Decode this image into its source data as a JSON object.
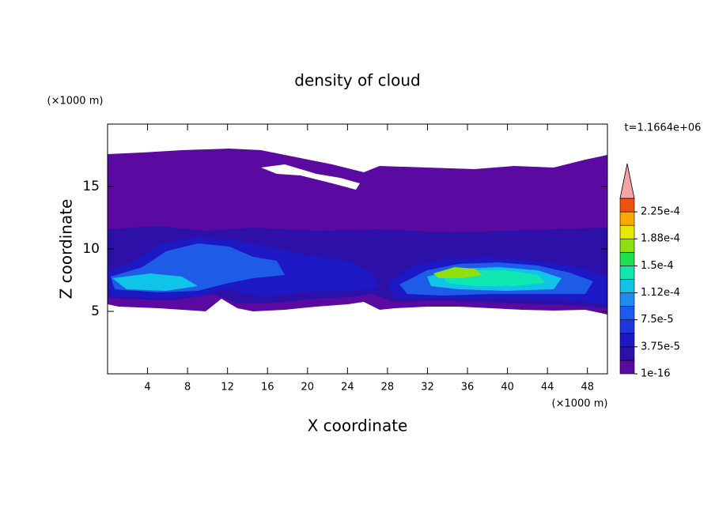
{
  "chart_data": {
    "type": "contour",
    "title": "density of cloud",
    "x_label": "X coordinate",
    "y_label": "Z coordinate",
    "x_unit": "(×1000 m)",
    "y_unit": "(×1000 m)",
    "time_label": "t=1.1664e+06",
    "xlim": [
      0,
      50
    ],
    "xticks": [
      4,
      8,
      12,
      16,
      20,
      24,
      28,
      32,
      36,
      40,
      44,
      48
    ],
    "ylim": [
      0,
      20
    ],
    "yticks": [
      5,
      10,
      15
    ],
    "colorbar": {
      "clim": [
        0,
        0.00024375
      ],
      "ticks": [
        {
          "value": 1e-16,
          "label": "1e-16"
        },
        {
          "value": 3.75e-05,
          "label": "3.75e-5"
        },
        {
          "value": 7.5e-05,
          "label": "7.5e-5"
        },
        {
          "value": 0.0001125,
          "label": "1.12e-4"
        },
        {
          "value": 0.00015,
          "label": "1.5e-4"
        },
        {
          "value": 0.0001875,
          "label": "1.88e-4"
        },
        {
          "value": 0.000225,
          "label": "2.25e-4"
        }
      ],
      "colors": [
        "#5a0aa0",
        "#2c10a8",
        "#1c18c4",
        "#1e36dc",
        "#1c5cec",
        "#1e8cf0",
        "#10c4e8",
        "#10e6b0",
        "#20e050",
        "#90e010",
        "#e8e800",
        "#f8a800",
        "#f05010"
      ],
      "extend_color": "#f4a4a4"
    }
  }
}
